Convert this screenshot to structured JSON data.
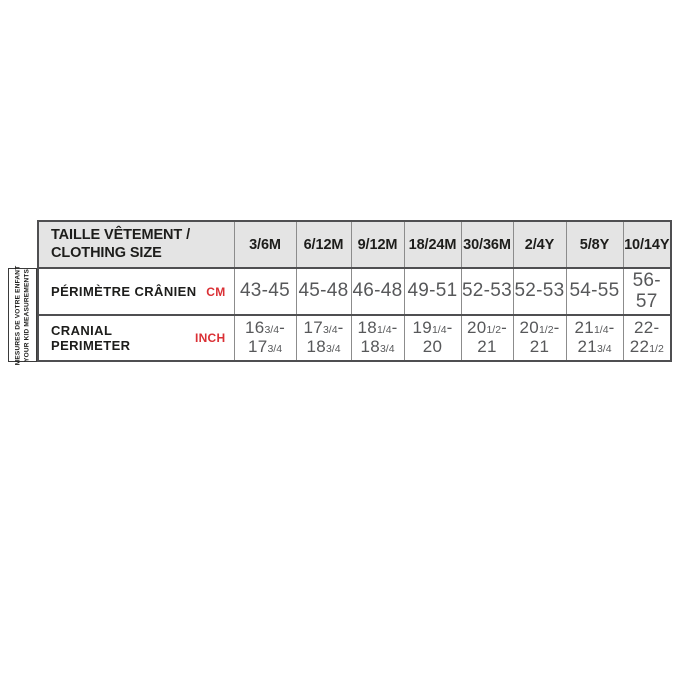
{
  "side_label": {
    "line1": "MESURES DE VOTRE ENFANT",
    "line2": "YOUR KID MEASUREMENTS"
  },
  "table": {
    "header": {
      "row_label_line1": "TAILLE VÊTEMENT /",
      "row_label_line2": "CLOTHING SIZE",
      "columns": [
        "3/6M",
        "6/12M",
        "9/12M",
        "18/24M",
        "30/36M",
        "2/4Y",
        "5/8Y",
        "10/14Y"
      ]
    },
    "rows": [
      {
        "label": "PÉRIMÈTRE CRÂNIEN",
        "unit": "CM",
        "values": [
          "43-45",
          "45-48",
          "46-48",
          "49-51",
          "52-53",
          "52-53",
          "54-55",
          "56-57"
        ]
      },
      {
        "label": "CRANIAL PERIMETER",
        "unit": "INCH",
        "values": [
          "16[3/4]-|17[3/4]",
          "17[3/4]-|18[3/4]",
          "18[1/4]-|18[3/4]",
          "19[1/4]-|20",
          "20[1/2]-|21",
          "20[1/2]-|21",
          "21[1/4]-|21[3/4]",
          "22-22[1/2]"
        ]
      }
    ]
  },
  "colors": {
    "accent_red": "#da3035",
    "header_bg": "#e4e4e4",
    "border_dark": "#4f4f51",
    "border_light": "#8c8c8c",
    "data_text": "#57585a",
    "label_text": "#1d1d1b"
  }
}
